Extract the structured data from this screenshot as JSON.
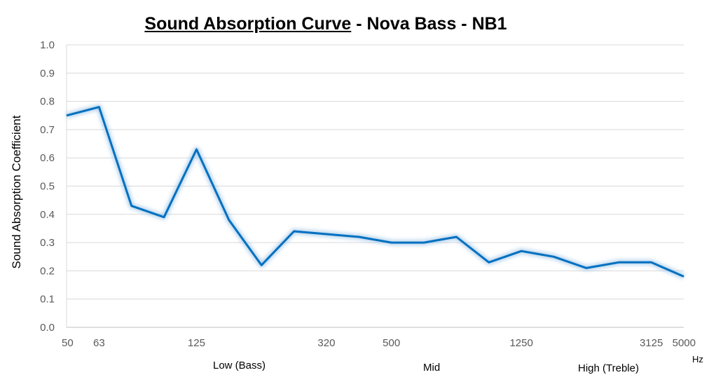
{
  "chart_data": {
    "type": "line",
    "title": "Sound Absorption Curve",
    "subtitle": " - Nova Bass - NB1",
    "ylabel": "Sound Absorption Coefficient",
    "xunit": "Hz",
    "ylim": [
      0,
      1.0
    ],
    "yticks": [
      "0.0",
      "0.1",
      "0.2",
      "0.3",
      "0.4",
      "0.5",
      "0.6",
      "0.7",
      "0.8",
      "0.9",
      "1.0"
    ],
    "xtick_labels": [
      "50",
      "63",
      "125",
      "320",
      "500",
      "1250",
      "3125",
      "5000"
    ],
    "band_labels": [
      "Low (Bass)",
      "Mid",
      "High (Treble)"
    ],
    "grid": true,
    "series_color": "#0070C0",
    "values": [
      0.75,
      0.78,
      0.43,
      0.39,
      0.63,
      0.38,
      0.22,
      0.34,
      0.33,
      0.32,
      0.3,
      0.3,
      0.32,
      0.23,
      0.27,
      0.25,
      0.21,
      0.23,
      0.23,
      0.18
    ]
  }
}
